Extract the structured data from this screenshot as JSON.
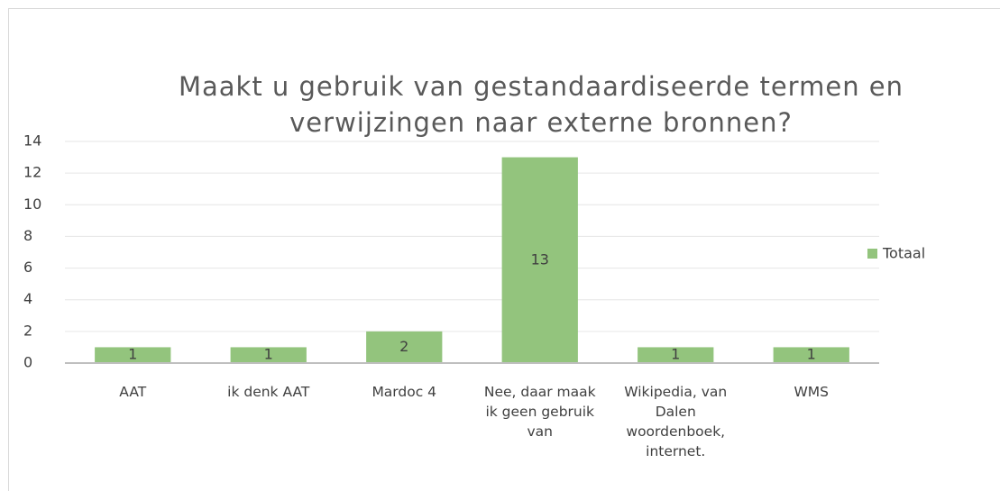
{
  "chart_data": {
    "type": "bar",
    "title": "Maakt u gebruik van gestandaardiseerde termen en verwijzingen naar externe bronnen?",
    "categories": [
      "AAT",
      "ik denk AAT",
      "Mardoc 4",
      "Nee, daar maak ik geen gebruik van",
      "Wikipedia, van Dalen woordenboek, internet.",
      "WMS"
    ],
    "series": [
      {
        "name": "Totaal",
        "color": "#93c47d",
        "values": [
          1,
          1,
          2,
          13,
          1,
          1
        ]
      }
    ],
    "ylim": [
      0,
      14
    ],
    "yticks": [
      0,
      2,
      4,
      6,
      8,
      10,
      12,
      14
    ],
    "grid": true,
    "legend": "right"
  }
}
